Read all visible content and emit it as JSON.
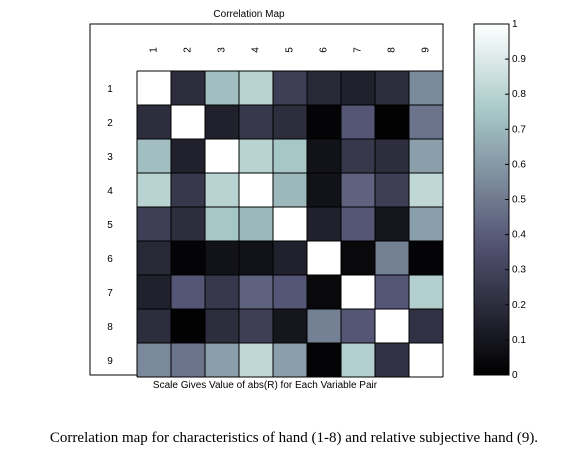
{
  "chart_data": {
    "type": "heatmap",
    "title": "Correlation Map",
    "xlabel": "Scale Gives Value of abs(R) for Each Variable Pair",
    "ylabel": "",
    "x_categories": [
      "1",
      "2",
      "3",
      "4",
      "5",
      "6",
      "7",
      "8",
      "9"
    ],
    "y_categories": [
      "1",
      "2",
      "3",
      "4",
      "5",
      "6",
      "7",
      "8",
      "9"
    ],
    "values": [
      [
        1.0,
        0.2,
        0.72,
        0.8,
        0.28,
        0.18,
        0.15,
        0.2,
        0.55
      ],
      [
        0.2,
        1.0,
        0.15,
        0.25,
        0.2,
        0.02,
        0.38,
        0.01,
        0.48
      ],
      [
        0.72,
        0.15,
        1.0,
        0.8,
        0.75,
        0.08,
        0.25,
        0.2,
        0.62
      ],
      [
        0.8,
        0.25,
        0.8,
        1.0,
        0.7,
        0.08,
        0.42,
        0.28,
        0.82
      ],
      [
        0.28,
        0.2,
        0.75,
        0.7,
        1.0,
        0.15,
        0.38,
        0.1,
        0.62
      ],
      [
        0.18,
        0.02,
        0.08,
        0.08,
        0.15,
        1.0,
        0.04,
        0.52,
        0.02
      ],
      [
        0.15,
        0.38,
        0.25,
        0.42,
        0.38,
        0.04,
        1.0,
        0.38,
        0.78
      ],
      [
        0.2,
        0.01,
        0.2,
        0.28,
        0.1,
        0.52,
        0.38,
        1.0,
        0.22
      ],
      [
        0.55,
        0.48,
        0.62,
        0.82,
        0.62,
        0.02,
        0.78,
        0.22,
        1.0
      ]
    ],
    "colorbar": {
      "range": [
        0,
        1
      ],
      "ticks": [
        "0",
        "0.1",
        "0.2",
        "0.3",
        "0.4",
        "0.5",
        "0.6",
        "0.7",
        "0.8",
        "0.9",
        "1"
      ]
    },
    "colormap": "bone",
    "grid": true
  },
  "caption": "Correlation map for characteristics of hand (1-8) and relative subjective hand (9)."
}
